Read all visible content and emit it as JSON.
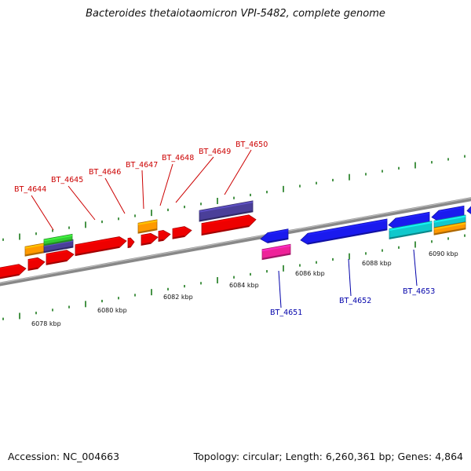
{
  "title": "Bacteroides thetaiotaomicron VPI-5482, complete genome",
  "footer": {
    "accession_text": "Accession: NC_004663",
    "summary_text": "Topology: circular; Length: 6,260,361 bp; Genes: 4,864"
  },
  "colors": {
    "forward_label": "#cc0000",
    "reverse_label": "#0000aa",
    "tick": "#1a7a1a",
    "backbone": "#888888",
    "red": "#ee0000",
    "blue": "#1a1aee",
    "orange": "#ff9900",
    "green": "#33cc33",
    "slate": "#4a3f99",
    "cyan": "#10c8cc",
    "magenta": "#ee2299"
  },
  "scale_labels": [
    "6078 kbp",
    "6080 kbp",
    "6082 kbp",
    "6084 kbp",
    "6086 kbp",
    "6088 kbp",
    "6090 kbp"
  ],
  "forward_gene_labels": [
    "BT_4644",
    "BT_4645",
    "BT_4646",
    "BT_4647",
    "BT_4648",
    "BT_4649",
    "BT_4650"
  ],
  "reverse_gene_labels": [
    "BT_4651",
    "BT_4652",
    "BT_4653"
  ]
}
